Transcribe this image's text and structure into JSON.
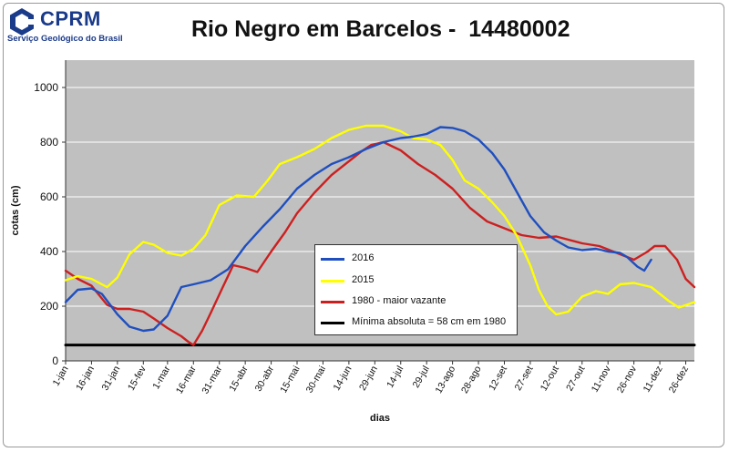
{
  "header": {
    "logo_name": "CPRM",
    "logo_sub": "Serviço Geológico do Brasil"
  },
  "chart_data": {
    "type": "line",
    "title": "Rio Negro em Barcelos -  14480002",
    "xlabel": "dias",
    "ylabel": "cotas (cm)",
    "ylim": [
      0,
      1100
    ],
    "yticks": [
      0,
      200,
      400,
      600,
      800,
      1000
    ],
    "xlim": [
      1,
      365
    ],
    "x_tick_days": [
      1,
      16,
      31,
      46,
      60,
      75,
      90,
      105,
      120,
      135,
      150,
      165,
      180,
      195,
      210,
      225,
      240,
      255,
      270,
      285,
      300,
      315,
      330,
      345,
      360
    ],
    "x_tick_labels": [
      "1-jan",
      "16-jan",
      "31-jan",
      "15-fev",
      "1-mar",
      "16-mar",
      "31-mar",
      "15-abr",
      "30-abr",
      "15-mai",
      "30-mai",
      "14-jun",
      "29-jun",
      "14-jul",
      "29-jul",
      "13-ago",
      "28-ago",
      "12-set",
      "27-set",
      "12-out",
      "27-out",
      "11-nov",
      "26-nov",
      "11-dez",
      "26-dez"
    ],
    "grid": true,
    "legend_position": "center-bottom",
    "colors": {
      "plot_bg": "#c0c0c0",
      "grid": "#ffffff"
    },
    "series": [
      {
        "name": "2016",
        "color": "#1f4fbf",
        "x": [
          1,
          8,
          16,
          22,
          31,
          38,
          46,
          52,
          60,
          68,
          75,
          85,
          95,
          105,
          115,
          125,
          135,
          145,
          155,
          165,
          175,
          185,
          195,
          202,
          210,
          218,
          225,
          232,
          240,
          248,
          255,
          262,
          270,
          278,
          285,
          292,
          300,
          308,
          315,
          322,
          326,
          332,
          336,
          340
        ],
        "y": [
          215,
          260,
          265,
          245,
          170,
          125,
          110,
          115,
          165,
          270,
          280,
          295,
          335,
          420,
          490,
          555,
          630,
          680,
          720,
          745,
          775,
          800,
          815,
          820,
          830,
          855,
          852,
          840,
          810,
          760,
          700,
          620,
          530,
          470,
          440,
          415,
          405,
          410,
          400,
          395,
          380,
          345,
          330,
          370
        ]
      },
      {
        "name": "2015",
        "color": "#ffff00",
        "x": [
          1,
          8,
          16,
          25,
          31,
          38,
          46,
          52,
          60,
          68,
          75,
          82,
          90,
          100,
          110,
          118,
          125,
          135,
          145,
          155,
          165,
          175,
          185,
          195,
          202,
          210,
          218,
          225,
          232,
          240,
          248,
          255,
          262,
          270,
          275,
          280,
          285,
          292,
          300,
          308,
          315,
          322,
          330,
          340,
          350,
          356,
          365
        ],
        "y": [
          295,
          310,
          300,
          270,
          305,
          390,
          435,
          425,
          395,
          385,
          410,
          460,
          570,
          605,
          600,
          660,
          720,
          745,
          775,
          815,
          845,
          860,
          860,
          840,
          815,
          810,
          790,
          735,
          660,
          630,
          580,
          530,
          460,
          350,
          260,
          200,
          170,
          180,
          235,
          255,
          245,
          280,
          285,
          270,
          220,
          195,
          215
        ]
      },
      {
        "name": "1980 - maior vazante",
        "color": "#cc2020",
        "x": [
          1,
          8,
          16,
          25,
          31,
          38,
          46,
          52,
          60,
          68,
          72,
          75,
          80,
          85,
          92,
          98,
          105,
          112,
          120,
          128,
          135,
          145,
          155,
          165,
          172,
          178,
          185,
          195,
          205,
          215,
          225,
          235,
          245,
          255,
          265,
          275,
          285,
          300,
          310,
          320,
          330,
          338,
          342,
          348,
          355,
          360,
          365
        ],
        "y": [
          330,
          300,
          275,
          205,
          190,
          190,
          180,
          155,
          120,
          90,
          70,
          58,
          110,
          175,
          270,
          350,
          340,
          325,
          400,
          470,
          540,
          615,
          680,
          730,
          765,
          790,
          800,
          770,
          720,
          680,
          630,
          560,
          510,
          485,
          460,
          450,
          455,
          430,
          420,
          395,
          370,
          400,
          420,
          420,
          370,
          300,
          270
        ]
      },
      {
        "name": "Mínima absoluta = 58 cm em 1980",
        "color": "#000000",
        "x": [
          1,
          365
        ],
        "y": [
          58,
          58
        ]
      }
    ]
  }
}
